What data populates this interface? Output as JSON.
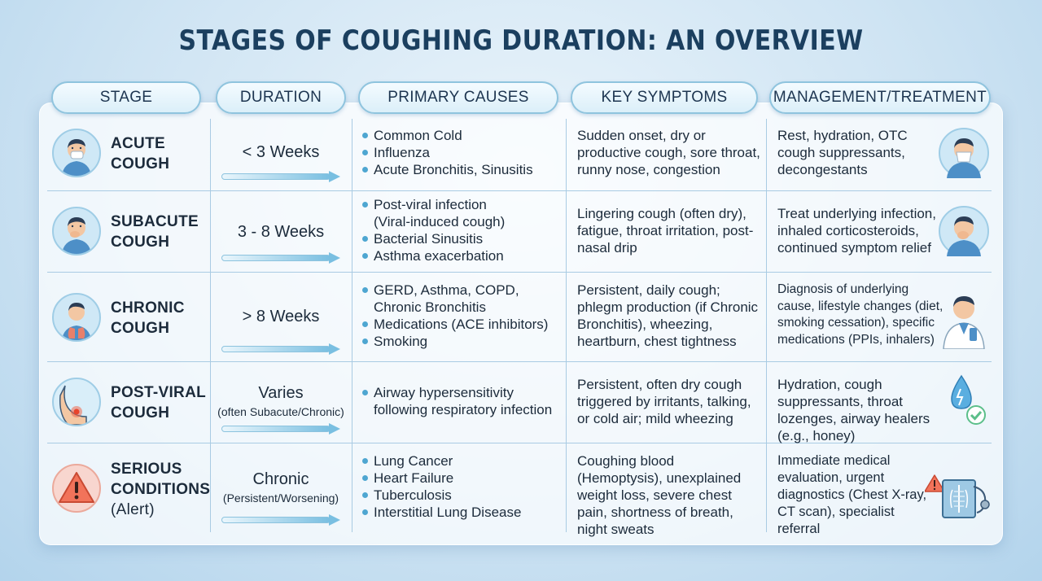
{
  "title": "STAGES OF COUGHING DURATION: AN OVERVIEW",
  "headers": {
    "stage": "STAGE",
    "duration": "DURATION",
    "causes": "PRIMARY CAUSES",
    "symptoms": "KEY SYMPTOMS",
    "management": "MANAGEMENT/TREATMENT"
  },
  "rows": [
    {
      "stage_line1": "ACUTE",
      "stage_line2": "COUGH",
      "stage_line3": "",
      "duration": "< 3 Weeks",
      "duration_note": "",
      "causes": [
        "Common Cold",
        "Influenza",
        "Acute Bronchitis, Sinusitis"
      ],
      "symptoms": "Sudden onset, dry or productive cough, sore throat, runny nose, congestion",
      "management": "Rest, hydration, OTC cough suppressants, decongestants",
      "icon": "person-sneezing-icon",
      "mgmt_icon": "person-blowing-nose-icon"
    },
    {
      "stage_line1": "SUBACUTE",
      "stage_line2": "COUGH",
      "stage_line3": "",
      "duration": "3 - 8 Weeks",
      "duration_note": "",
      "causes": [
        "Post-viral infection",
        "(Viral-induced cough)",
        "Bacterial Sinusitis",
        "Asthma exacerbation"
      ],
      "symptoms": "Lingering cough (often dry), fatigue, throat irritation, post-nasal drip",
      "management": "Treat underlying infection, inhaled corticosteroids, continued symptom relief",
      "icon": "person-coughing-icon",
      "mgmt_icon": "person-coughing-icon"
    },
    {
      "stage_line1": "CHRONIC",
      "stage_line2": "COUGH",
      "stage_line3": "",
      "duration": "> 8 Weeks",
      "duration_note": "",
      "causes": [
        "GERD, Asthma, COPD,",
        "Chronic Bronchitis",
        "Medications (ACE inhibitors)",
        "Smoking"
      ],
      "symptoms": "Persistent, daily cough; phlegm production (if Chronic Bronchitis), wheezing, heartburn, chest tightness",
      "management": "Diagnosis of underlying cause, lifestyle changes (diet, smoking cessation), specific medications (PPIs, inhalers)",
      "icon": "person-lungs-icon",
      "mgmt_icon": "doctor-icon"
    },
    {
      "stage_line1": "POST-VIRAL",
      "stage_line2": "COUGH",
      "stage_line3": "",
      "duration": "Varies",
      "duration_note": "(often Subacute/Chronic)",
      "causes": [
        "Airway hypersensitivity",
        "following respiratory infection"
      ],
      "symptoms": "Persistent, often dry cough triggered by irritants, talking, or cold air; mild wheezing",
      "management": "Hydration, cough suppressants, throat lozenges, airway healers (e.g., honey)",
      "icon": "irritated-throat-icon",
      "mgmt_icon": "water-drop-check-icon"
    },
    {
      "stage_line1": "SERIOUS",
      "stage_line2": "CONDITIONS",
      "stage_line3": "(Alert)",
      "duration": "Chronic",
      "duration_note": "(Persistent/Worsening)",
      "causes": [
        "Lung Cancer",
        "Heart Failure",
        "Tuberculosis",
        "Interstitial Lung Disease"
      ],
      "symptoms": "Coughing blood (Hemoptysis), unexplained weight loss, severe chest pain, shortness of breath, night sweats",
      "management": "Immediate medical evaluation, urgent diagnostics (Chest X-ray, CT scan), specialist referral",
      "icon": "warning-icon",
      "mgmt_icon": "chest-xray-stethoscope-icon"
    }
  ]
}
